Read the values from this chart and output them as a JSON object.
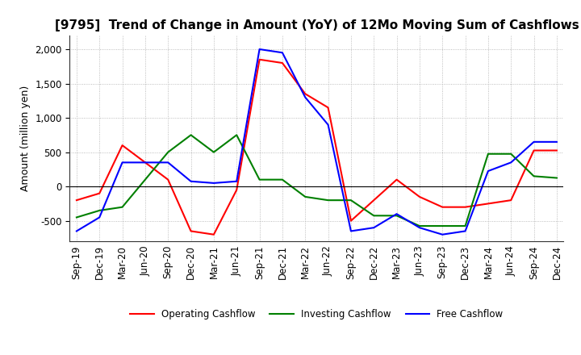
{
  "title": "[9795]  Trend of Change in Amount (YoY) of 12Mo Moving Sum of Cashflows",
  "ylabel": "Amount (million yen)",
  "x_labels": [
    "Sep-19",
    "Dec-19",
    "Mar-20",
    "Jun-20",
    "Sep-20",
    "Dec-20",
    "Mar-21",
    "Jun-21",
    "Sep-21",
    "Dec-21",
    "Mar-22",
    "Jun-22",
    "Sep-22",
    "Dec-22",
    "Mar-23",
    "Jun-23",
    "Sep-23",
    "Dec-23",
    "Mar-24",
    "Jun-24",
    "Sep-24",
    "Dec-24"
  ],
  "operating": [
    -200,
    -100,
    600,
    350,
    100,
    -650,
    -700,
    -50,
    1850,
    1800,
    1350,
    1150,
    -500,
    -200,
    100,
    -150,
    -300,
    -300,
    -250,
    -200,
    525,
    525
  ],
  "investing": [
    -450,
    -350,
    -300,
    100,
    500,
    750,
    500,
    750,
    100,
    100,
    -150,
    -200,
    -200,
    -425,
    -425,
    -575,
    -575,
    -575,
    475,
    475,
    150,
    125
  ],
  "free": [
    -650,
    -450,
    350,
    350,
    350,
    75,
    50,
    75,
    2000,
    1950,
    1300,
    900,
    -650,
    -600,
    -400,
    -600,
    -700,
    -650,
    225,
    350,
    650,
    650
  ],
  "ylim": [
    -800,
    2200
  ],
  "yticks": [
    -500,
    0,
    500,
    1000,
    1500,
    2000
  ],
  "operating_color": "#ff0000",
  "investing_color": "#008000",
  "free_color": "#0000ff",
  "grid_color": "#aaaaaa",
  "title_fontsize": 11,
  "axis_fontsize": 9,
  "tick_fontsize": 8.5
}
